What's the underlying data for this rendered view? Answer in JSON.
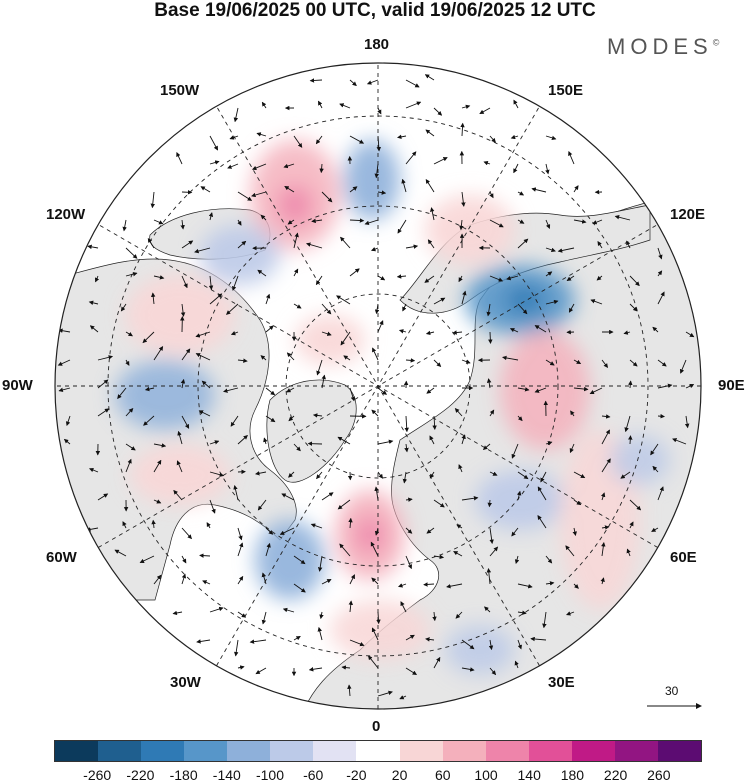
{
  "title": "Base 19/06/2025 00 UTC, valid 19/06/2025 12 UTC",
  "brand": {
    "name": "MODES",
    "mark": "©"
  },
  "map": {
    "projection": "north-polar-stereographic",
    "center_longitude_bottom": "0",
    "longitude_labels": [
      {
        "id": "lon-180",
        "text": "180"
      },
      {
        "id": "lon-150e",
        "text": "150E"
      },
      {
        "id": "lon-120e",
        "text": "120E"
      },
      {
        "id": "lon-90e",
        "text": "90E"
      },
      {
        "id": "lon-60e",
        "text": "60E"
      },
      {
        "id": "lon-30e",
        "text": "30E"
      },
      {
        "id": "lon-0",
        "text": "0"
      },
      {
        "id": "lon-30w",
        "text": "30W"
      },
      {
        "id": "lon-60w",
        "text": "60W"
      },
      {
        "id": "lon-90w",
        "text": "90W"
      },
      {
        "id": "lon-120w",
        "text": "120W"
      },
      {
        "id": "lon-150w",
        "text": "150W"
      }
    ],
    "land_color": "#e6e6e6",
    "ocean_color": "#ffffff"
  },
  "vector_scale": {
    "value": "30"
  },
  "colorbar": {
    "colors": [
      "#0c3a5c",
      "#1f5f8f",
      "#2f7ab5",
      "#5796c9",
      "#8eb0da",
      "#bccae8",
      "#e2e2f3",
      "#ffffff",
      "#f8d6d6",
      "#f4b0bc",
      "#ee84aa",
      "#e25098",
      "#c01a86",
      "#921582",
      "#5c0c72"
    ],
    "ticks": [
      "-260",
      "-220",
      "-180",
      "-140",
      "-100",
      "-60",
      "-20",
      "20",
      "60",
      "100",
      "140",
      "180",
      "220",
      "260"
    ]
  }
}
